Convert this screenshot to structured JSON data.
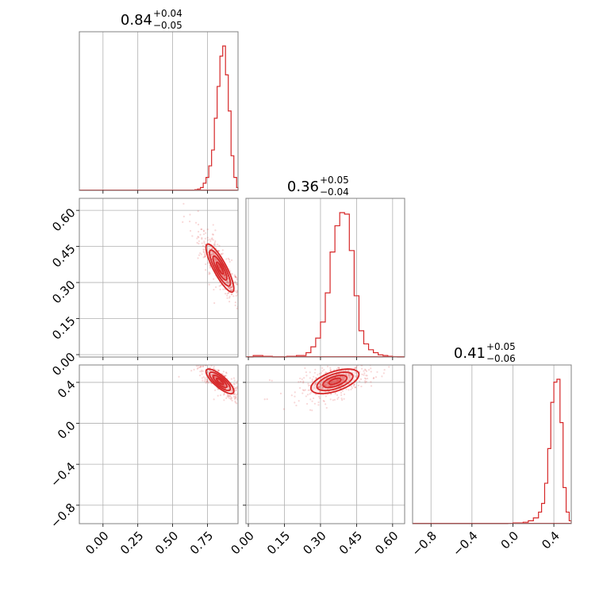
{
  "chart_data": {
    "type": "corner",
    "color": "#d62728",
    "grid": true,
    "parameters": [
      {
        "range": [
          -0.17,
          0.97
        ],
        "ticks": [
          0.0,
          0.25,
          0.5,
          0.75
        ],
        "tick_labels": [
          "0.00",
          "0.25",
          "0.50",
          "0.75"
        ]
      },
      {
        "range": [
          -0.01,
          0.65
        ],
        "ticks": [
          0.0,
          0.15,
          0.3,
          0.45,
          0.6
        ],
        "tick_labels": [
          "0.00",
          "0.15",
          "0.30",
          "0.45",
          "0.60"
        ]
      },
      {
        "range": [
          -0.98,
          0.57
        ],
        "ticks": [
          -0.8,
          -0.4,
          0.0,
          0.4
        ],
        "tick_labels": [
          "−0.8",
          "−0.4",
          "0.0",
          "0.4"
        ]
      }
    ],
    "titles": [
      {
        "value": "0.84",
        "plus": "+0.04",
        "minus": "−0.05"
      },
      {
        "value": "0.36",
        "plus": "+0.05",
        "minus": "−0.04"
      },
      {
        "value": "0.41",
        "plus": "+0.05",
        "minus": "−0.06"
      }
    ],
    "histograms": [
      {
        "param": 0,
        "edges": [
          0.66,
          0.68,
          0.7,
          0.72,
          0.74,
          0.76,
          0.78,
          0.8,
          0.82,
          0.84,
          0.86,
          0.88,
          0.9,
          0.92,
          0.94,
          0.96,
          0.97
        ],
        "counts": [
          0.005,
          0.01,
          0.02,
          0.05,
          0.09,
          0.17,
          0.28,
          0.5,
          0.72,
          0.93,
          1.0,
          0.8,
          0.55,
          0.24,
          0.09,
          0.02
        ]
      },
      {
        "param": 1,
        "edges": [
          0.0,
          0.02,
          0.04,
          0.06,
          0.08,
          0.1,
          0.12,
          0.14,
          0.16,
          0.18,
          0.2,
          0.22,
          0.24,
          0.26,
          0.28,
          0.3,
          0.32,
          0.34,
          0.36,
          0.38,
          0.4,
          0.42,
          0.44,
          0.46,
          0.48,
          0.5,
          0.52,
          0.54,
          0.56,
          0.58,
          0.6,
          0.62,
          0.64,
          0.65
        ],
        "counts": [
          0.0,
          0.01,
          0.01,
          0.005,
          0.005,
          0.0,
          0.0,
          0.0,
          0.005,
          0.005,
          0.01,
          0.01,
          0.03,
          0.07,
          0.13,
          0.24,
          0.44,
          0.72,
          0.9,
          0.99,
          0.98,
          0.73,
          0.42,
          0.18,
          0.09,
          0.05,
          0.03,
          0.015,
          0.01,
          0.005,
          0.002,
          0.0,
          0.0
        ]
      },
      {
        "param": 2,
        "edges": [
          -0.98,
          -0.9,
          -0.8,
          -0.7,
          -0.6,
          -0.5,
          -0.4,
          -0.3,
          -0.2,
          -0.1,
          -0.05,
          0.0,
          0.05,
          0.1,
          0.15,
          0.2,
          0.25,
          0.28,
          0.31,
          0.34,
          0.37,
          0.4,
          0.43,
          0.46,
          0.49,
          0.52,
          0.55,
          0.57
        ],
        "counts": [
          0.0,
          0.0,
          0.0,
          0.0,
          0.0,
          0.0,
          0.0,
          0.0,
          0.0,
          0.0,
          0.002,
          0.005,
          0.005,
          0.01,
          0.02,
          0.04,
          0.08,
          0.14,
          0.28,
          0.52,
          0.84,
          0.98,
          1.0,
          0.7,
          0.25,
          0.08,
          0.02
        ]
      }
    ],
    "pairs": [
      {
        "x": 0,
        "y": 1,
        "center": [
          0.84,
          0.36
        ],
        "sigma": [
          0.05,
          0.05
        ],
        "rho": -0.85,
        "levels": [
          0.5,
          1.0,
          1.5,
          2.0
        ]
      },
      {
        "x": 0,
        "y": 2,
        "center": [
          0.84,
          0.41
        ],
        "sigma": [
          0.05,
          0.06
        ],
        "rho": -0.8,
        "levels": [
          0.5,
          1.0,
          1.5,
          2.0
        ]
      },
      {
        "x": 1,
        "y": 2,
        "center": [
          0.36,
          0.41
        ],
        "sigma": [
          0.05,
          0.06
        ],
        "rho": 0.55,
        "levels": [
          0.5,
          1.0,
          1.5,
          2.0
        ]
      }
    ]
  }
}
